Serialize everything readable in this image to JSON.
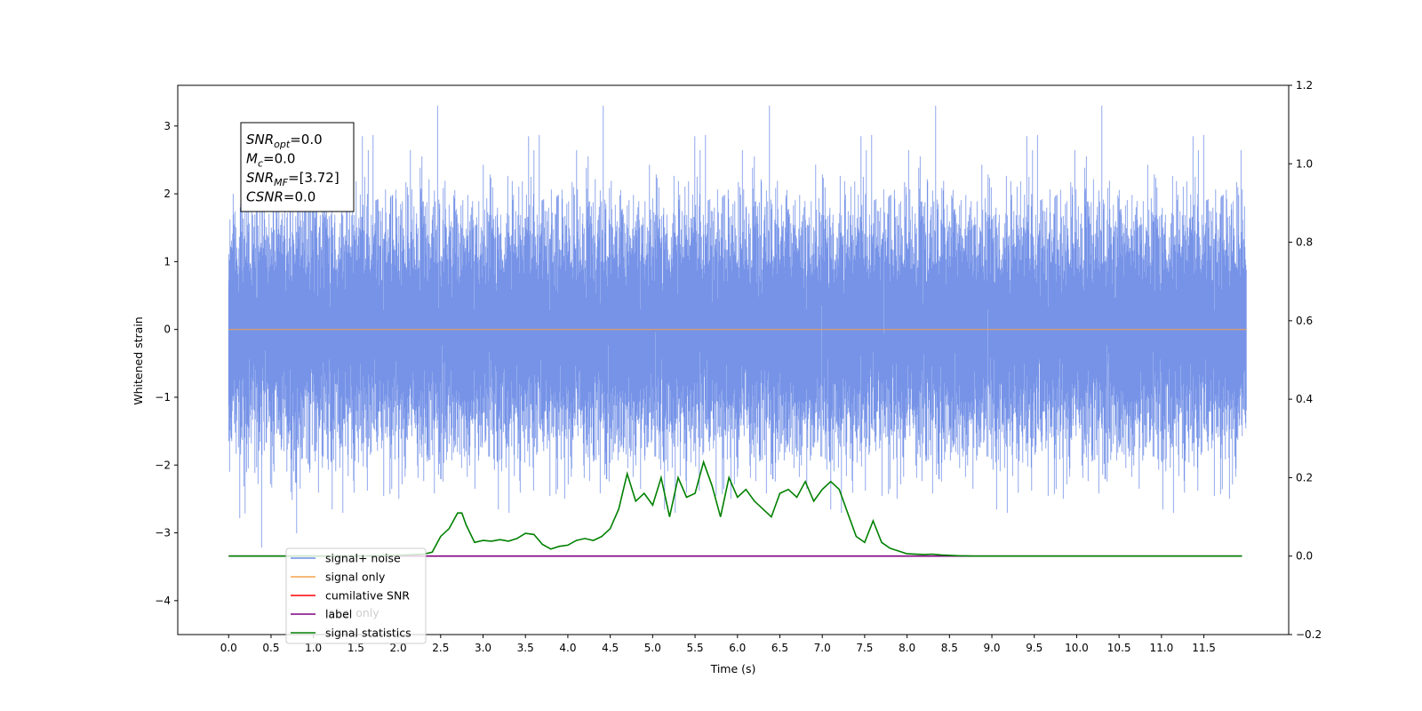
{
  "chart_data": {
    "type": "line",
    "xlabel": "Time (s)",
    "ylabel": "Whitened strain",
    "xlim": [
      -0.6,
      12.5
    ],
    "ylim_left": [
      -4.5,
      3.6
    ],
    "ylim_right": [
      -0.2,
      1.2
    ],
    "x_ticks": [
      "0.0",
      "0.5",
      "1.0",
      "1.5",
      "2.0",
      "2.5",
      "3.0",
      "3.5",
      "4.0",
      "4.5",
      "5.0",
      "5.5",
      "6.0",
      "6.5",
      "7.0",
      "7.5",
      "8.0",
      "8.5",
      "9.0",
      "9.5",
      "10.0",
      "10.5",
      "11.0",
      "11.5"
    ],
    "y_ticks_left": [
      3,
      2,
      1,
      0,
      -1,
      -2,
      -3,
      -4
    ],
    "y_tick_labels_left": [
      "3",
      "2",
      "1",
      "0",
      "−1",
      "−2",
      "−3",
      "−4"
    ],
    "y_ticks_right": [
      1.2,
      1.0,
      0.8,
      0.6,
      0.4,
      0.2,
      0.0,
      -0.2
    ],
    "y_tick_labels_right": [
      "1.2",
      "1.0",
      "0.8",
      "0.6",
      "0.4",
      "0.2",
      "0.0",
      "−0.2"
    ],
    "grid": false,
    "legend_position": "bottom-left",
    "colors": {
      "signal_noise": "#6f8de6",
      "signal_only": "#f5a04b",
      "cumulative_snr": "#ff0000",
      "label": "#800080",
      "signal_statistics": "#008000"
    },
    "noise_series": {
      "name": "signal+ noise",
      "axis": "left",
      "x_range": [
        0.0,
        12.0
      ],
      "sample_rate": 2048,
      "distribution": "gaussian",
      "std": 0.8,
      "max": 3.3,
      "min": -4.1
    },
    "series": [
      {
        "name": "signal only",
        "axis": "left",
        "x": [
          0.0,
          12.0
        ],
        "values": [
          0.0,
          0.0
        ]
      },
      {
        "name": "label",
        "axis": "right",
        "x": [
          0.0,
          11.95
        ],
        "values": [
          0.0,
          0.0
        ]
      },
      {
        "name": "signal statistics",
        "axis": "right",
        "x": [
          0.0,
          0.25,
          0.5,
          0.75,
          1.0,
          1.25,
          1.5,
          1.75,
          2.0,
          2.1,
          2.2,
          2.3,
          2.4,
          2.5,
          2.6,
          2.7,
          2.75,
          2.8,
          2.9,
          3.0,
          3.1,
          3.2,
          3.3,
          3.4,
          3.5,
          3.6,
          3.7,
          3.8,
          3.9,
          4.0,
          4.1,
          4.2,
          4.3,
          4.4,
          4.5,
          4.6,
          4.7,
          4.8,
          4.9,
          5.0,
          5.1,
          5.2,
          5.3,
          5.4,
          5.5,
          5.6,
          5.7,
          5.8,
          5.9,
          6.0,
          6.1,
          6.2,
          6.3,
          6.4,
          6.5,
          6.6,
          6.7,
          6.8,
          6.9,
          7.0,
          7.1,
          7.2,
          7.3,
          7.4,
          7.5,
          7.6,
          7.7,
          7.8,
          8.0,
          8.2,
          8.3,
          8.4,
          8.6,
          8.8,
          9.0,
          9.5,
          10.0,
          11.0,
          11.95
        ],
        "values": [
          0.0,
          0.0,
          0.0,
          0.0,
          0.0,
          0.0,
          0.0,
          0.001,
          0.002,
          0.003,
          0.004,
          0.005,
          0.01,
          0.05,
          0.07,
          0.11,
          0.11,
          0.08,
          0.035,
          0.04,
          0.038,
          0.042,
          0.038,
          0.045,
          0.058,
          0.055,
          0.03,
          0.018,
          0.025,
          0.028,
          0.04,
          0.045,
          0.04,
          0.05,
          0.07,
          0.12,
          0.21,
          0.14,
          0.16,
          0.13,
          0.2,
          0.1,
          0.2,
          0.15,
          0.16,
          0.24,
          0.18,
          0.1,
          0.2,
          0.15,
          0.17,
          0.14,
          0.12,
          0.1,
          0.16,
          0.17,
          0.15,
          0.19,
          0.14,
          0.17,
          0.19,
          0.17,
          0.11,
          0.05,
          0.035,
          0.09,
          0.035,
          0.02,
          0.006,
          0.004,
          0.005,
          0.003,
          0.001,
          0.0,
          0.0,
          0.0,
          0.0,
          0.0,
          0.0
        ]
      }
    ],
    "legend": [
      {
        "label": "signal+ noise",
        "color": "#6f8de6"
      },
      {
        "label": "signal only",
        "color": "#f5a04b"
      },
      {
        "label": "cumilative SNR",
        "color": "#ff0000"
      },
      {
        "label": "label",
        "color": "#800080"
      },
      {
        "label": "signal statistics",
        "color": "#008000"
      }
    ],
    "legend_occluded_text": "label only",
    "info_box": [
      {
        "name": "SNR",
        "sub": "opt",
        "value": "=0.0"
      },
      {
        "name": "M",
        "sub": "c",
        "value": "=0.0"
      },
      {
        "name": "SNR",
        "sub": "MF",
        "value": "=[3.72]"
      },
      {
        "name": "CSNR",
        "sub": "",
        "value": "=0.0"
      }
    ]
  }
}
